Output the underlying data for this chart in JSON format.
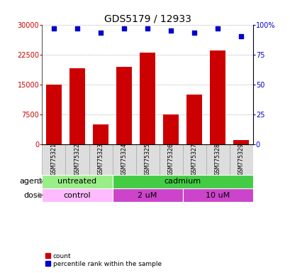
{
  "title": "GDS5179 / 12933",
  "samples": [
    "GSM775321",
    "GSM775322",
    "GSM775323",
    "GSM775324",
    "GSM775325",
    "GSM775326",
    "GSM775327",
    "GSM775328",
    "GSM775329"
  ],
  "counts": [
    15000,
    19000,
    5000,
    19500,
    23000,
    7500,
    12500,
    23500,
    1200
  ],
  "percentiles": [
    97,
    97,
    93,
    97,
    97,
    95,
    93,
    97,
    90
  ],
  "bar_color": "#cc0000",
  "dot_color": "#0000cc",
  "ylim_left": [
    0,
    30000
  ],
  "yticks_left": [
    0,
    7500,
    15000,
    22500,
    30000
  ],
  "ytick_labels_left": [
    "0",
    "7500",
    "15000",
    "22500",
    "30000"
  ],
  "ylim_right": [
    0,
    100
  ],
  "yticks_right": [
    0,
    25,
    50,
    75,
    100
  ],
  "ytick_labels_right": [
    "0",
    "25",
    "50",
    "75",
    "100%"
  ],
  "agent_groups": [
    {
      "label": "untreated",
      "start": 0,
      "end": 3,
      "color": "#99ee88"
    },
    {
      "label": "cadmium",
      "start": 3,
      "end": 9,
      "color": "#44cc44"
    }
  ],
  "dose_groups": [
    {
      "label": "control",
      "start": 0,
      "end": 3,
      "color": "#ffbbff"
    },
    {
      "label": "2 uM",
      "start": 3,
      "end": 6,
      "color": "#dd44dd"
    },
    {
      "label": "10 uM",
      "start": 6,
      "end": 9,
      "color": "#dd44dd"
    }
  ],
  "agent_label": "agent",
  "dose_label": "dose",
  "legend_count_label": "count",
  "legend_pct_label": "percentile rank within the sample",
  "title_fontsize": 10,
  "tick_fontsize": 7,
  "sample_fontsize": 6,
  "label_fontsize": 8,
  "row_label_fontsize": 8
}
